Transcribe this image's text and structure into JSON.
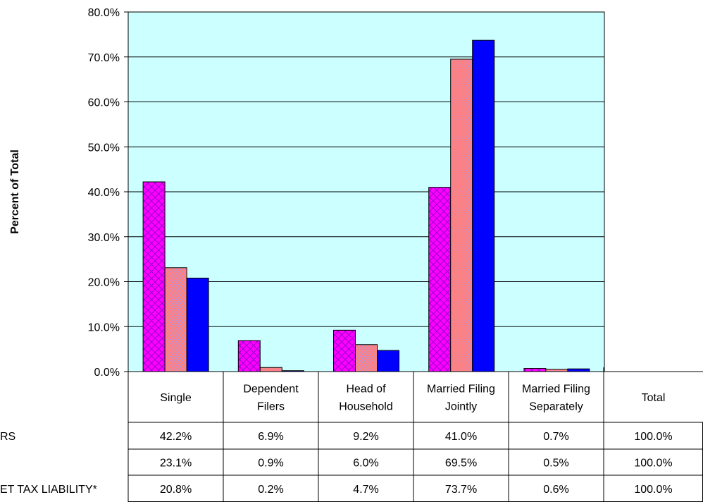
{
  "chart_data": {
    "type": "bar",
    "title": "",
    "xlabel": "",
    "ylabel": "Percent of Total",
    "ylim": [
      0,
      80
    ],
    "y_ticks": [
      "0.0%",
      "10.0%",
      "20.0%",
      "30.0%",
      "40.0%",
      "50.0%",
      "60.0%",
      "70.0%",
      "80.0%"
    ],
    "grid": true,
    "categories": [
      [
        "Single"
      ],
      [
        "Dependent",
        "Filers"
      ],
      [
        "Head of",
        "Household"
      ],
      [
        "Married Filing",
        "Jointly"
      ],
      [
        "Married Filing",
        "Separately"
      ]
    ],
    "table_columns": [
      [
        "Single"
      ],
      [
        "Dependent",
        "Filers"
      ],
      [
        "Head of",
        "Household"
      ],
      [
        "Married Filing",
        "Jointly"
      ],
      [
        "Married Filing",
        "Separately"
      ],
      [
        "Total"
      ]
    ],
    "series": [
      {
        "name": "RS",
        "values": [
          42.2,
          6.9,
          9.2,
          41.0,
          0.7
        ],
        "total": 100.0,
        "cells": [
          "42.2%",
          "6.9%",
          "9.2%",
          "41.0%",
          "0.7%",
          "100.0%"
        ]
      },
      {
        "name": "",
        "values": [
          23.1,
          0.9,
          6.0,
          69.5,
          0.5
        ],
        "total": 100.0,
        "cells": [
          "23.1%",
          "0.9%",
          "6.0%",
          "69.5%",
          "0.5%",
          "100.0%"
        ]
      },
      {
        "name": "ET TAX LIABILITY*",
        "values": [
          20.8,
          0.2,
          4.7,
          73.7,
          0.6
        ],
        "total": 100.0,
        "cells": [
          "20.8%",
          "0.2%",
          "4.7%",
          "73.7%",
          "0.6%",
          "100.0%"
        ]
      }
    ],
    "colors": {
      "plot_background": "#ccffff",
      "series": [
        "#ff00ff",
        "#ff8080",
        "#0000ff"
      ],
      "pattern_ink": [
        "#9900cc",
        "#9999ff",
        "#0000ff"
      ],
      "patterns": [
        "crosshatch",
        "dots",
        "solid"
      ]
    }
  }
}
